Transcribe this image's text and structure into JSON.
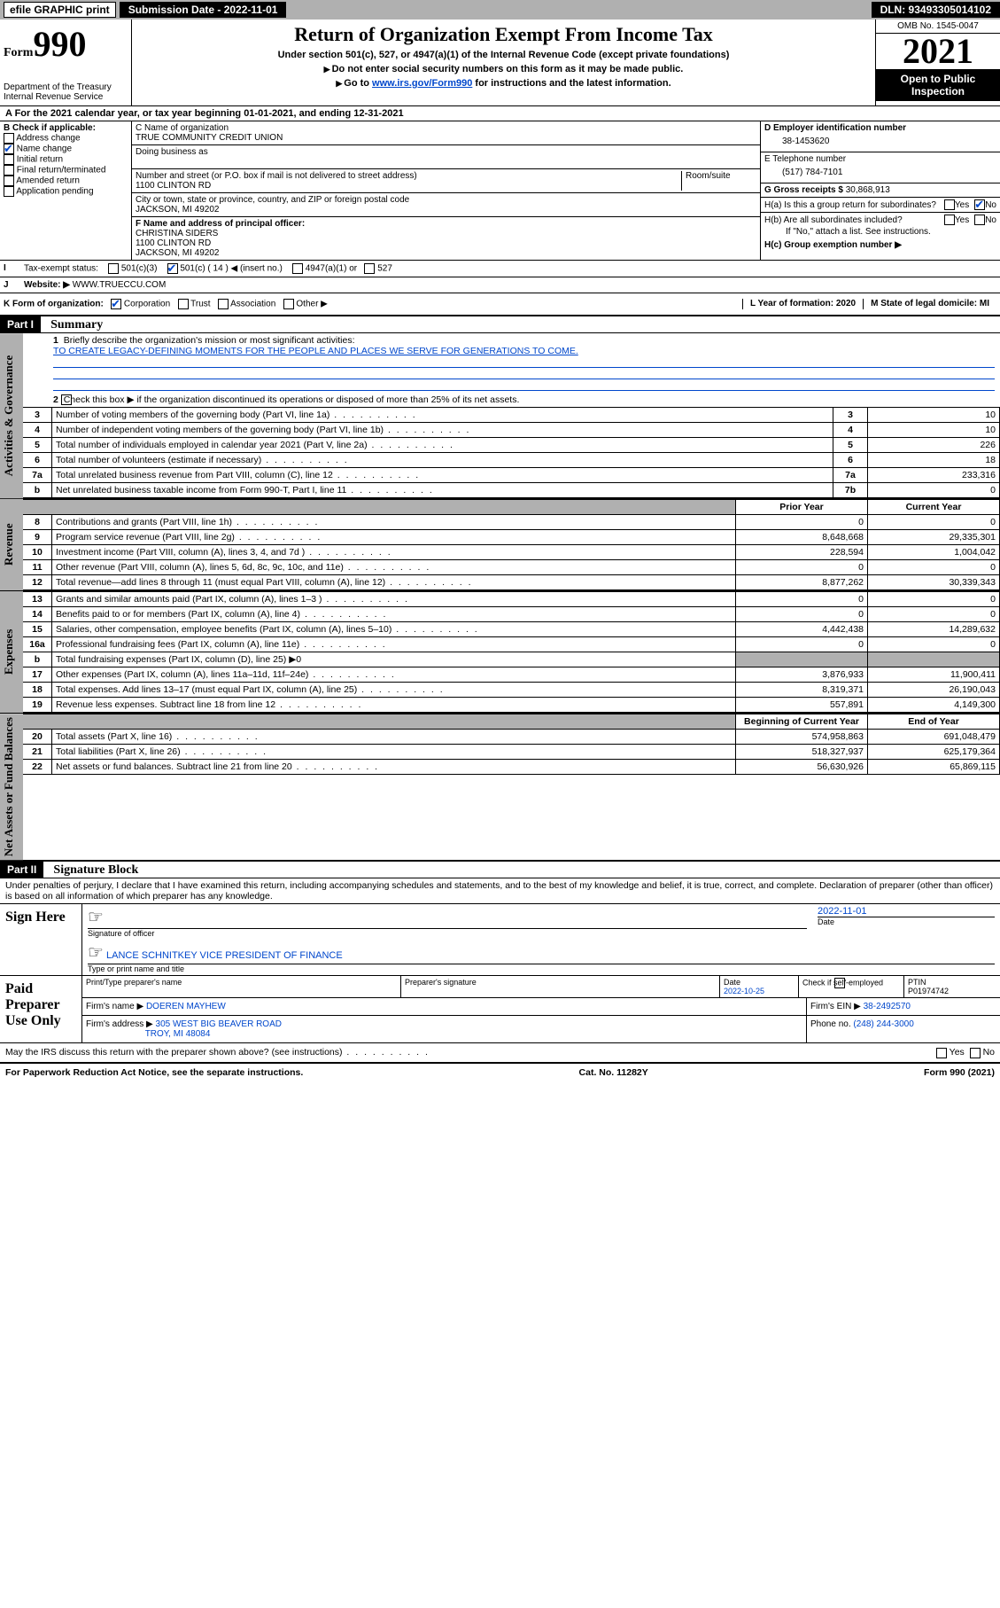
{
  "topbar": {
    "efile": "efile GRAPHIC print",
    "submission": "Submission Date - 2022-11-01",
    "dln": "DLN: 93493305014102"
  },
  "header": {
    "form_word": "Form",
    "form_num": "990",
    "dept": "Department of the Treasury",
    "irs": "Internal Revenue Service",
    "title": "Return of Organization Exempt From Income Tax",
    "sub1": "Under section 501(c), 527, or 4947(a)(1) of the Internal Revenue Code (except private foundations)",
    "sub2": "Do not enter social security numbers on this form as it may be made public.",
    "sub3_pre": "Go to ",
    "sub3_link": "www.irs.gov/Form990",
    "sub3_post": " for instructions and the latest information.",
    "omb": "OMB No. 1545-0047",
    "year": "2021",
    "open": "Open to Public Inspection"
  },
  "row_a": {
    "text_a": "A For the 2021 calendar year, or tax year beginning 01-01-2021",
    "text_b": ", and ending 12-31-2021"
  },
  "col_b": {
    "hdr": "B Check if applicable:",
    "i1": "Address change",
    "i2": "Name change",
    "i3": "Initial return",
    "i4": "Final return/terminated",
    "i5": "Amended return",
    "i6": "Application pending"
  },
  "col_cd": {
    "c_lbl": "C Name of organization",
    "c_val": "TRUE COMMUNITY CREDIT UNION",
    "dba_lbl": "Doing business as",
    "addr_lbl": "Number and street (or P.O. box if mail is not delivered to street address)",
    "room_lbl": "Room/suite",
    "addr_val": "1100 CLINTON RD",
    "city_lbl": "City or town, state or province, country, and ZIP or foreign postal code",
    "city_val": "JACKSON, MI  49202",
    "f_lbl": "F Name and address of principal officer:",
    "f_name": "CHRISTINA SIDERS",
    "f_addr1": "1100 CLINTON RD",
    "f_addr2": "JACKSON, MI  49202"
  },
  "col_right": {
    "d_lbl": "D Employer identification number",
    "d_val": "38-1453620",
    "e_lbl": "E Telephone number",
    "e_val": "(517) 784-7101",
    "g_lbl": "G Gross receipts $",
    "g_val": "30,868,913",
    "ha": "H(a)  Is this a group return for subordinates?",
    "hb": "H(b)  Are all subordinates included?",
    "hb_note": "If \"No,\" attach a list. See instructions.",
    "hc": "H(c)  Group exemption number ▶",
    "yes": "Yes",
    "no": "No"
  },
  "row_i": {
    "lbl": "I",
    "text": "Tax-exempt status:",
    "o1": "501(c)(3)",
    "o2": "501(c) ( 14 ) ◀ (insert no.)",
    "o3": "4947(a)(1) or",
    "o4": "527"
  },
  "row_j": {
    "lbl": "J",
    "text": "Website: ▶",
    "val": "WWW.TRUECCU.COM"
  },
  "row_k": {
    "lbl": "K Form of organization:",
    "o1": "Corporation",
    "o2": "Trust",
    "o3": "Association",
    "o4": "Other ▶",
    "l_lbl": "L Year of formation: 2020",
    "m_lbl": "M State of legal domicile: MI"
  },
  "part1": {
    "hdr": "Part I",
    "title": "Summary",
    "side_gov": "Activities & Governance",
    "side_rev": "Revenue",
    "side_exp": "Expenses",
    "side_net": "Net Assets or Fund Balances",
    "l1": "Briefly describe the organization's mission or most significant activities:",
    "l1_val": "TO CREATE LEGACY-DEFINING MOMENTS FOR THE PEOPLE AND PLACES WE SERVE FOR GENERATIONS TO COME.",
    "l2": "Check this box ▶        if the organization discontinued its operations or disposed of more than 25% of its net assets.",
    "rows_gov": [
      {
        "n": "3",
        "d": "Number of voting members of the governing body (Part VI, line 1a)",
        "k": "3",
        "v": "10"
      },
      {
        "n": "4",
        "d": "Number of independent voting members of the governing body (Part VI, line 1b)",
        "k": "4",
        "v": "10"
      },
      {
        "n": "5",
        "d": "Total number of individuals employed in calendar year 2021 (Part V, line 2a)",
        "k": "5",
        "v": "226"
      },
      {
        "n": "6",
        "d": "Total number of volunteers (estimate if necessary)",
        "k": "6",
        "v": "18"
      },
      {
        "n": "7a",
        "d": "Total unrelated business revenue from Part VIII, column (C), line 12",
        "k": "7a",
        "v": "233,316"
      },
      {
        "n": "b",
        "d": "Net unrelated business taxable income from Form 990-T, Part I, line 11",
        "k": "7b",
        "v": "0"
      }
    ],
    "hdr_prior": "Prior Year",
    "hdr_curr": "Current Year",
    "rows_rev": [
      {
        "n": "8",
        "d": "Contributions and grants (Part VIII, line 1h)",
        "p": "0",
        "c": "0"
      },
      {
        "n": "9",
        "d": "Program service revenue (Part VIII, line 2g)",
        "p": "8,648,668",
        "c": "29,335,301"
      },
      {
        "n": "10",
        "d": "Investment income (Part VIII, column (A), lines 3, 4, and 7d )",
        "p": "228,594",
        "c": "1,004,042"
      },
      {
        "n": "11",
        "d": "Other revenue (Part VIII, column (A), lines 5, 6d, 8c, 9c, 10c, and 11e)",
        "p": "0",
        "c": "0"
      },
      {
        "n": "12",
        "d": "Total revenue—add lines 8 through 11 (must equal Part VIII, column (A), line 12)",
        "p": "8,877,262",
        "c": "30,339,343"
      }
    ],
    "rows_exp": [
      {
        "n": "13",
        "d": "Grants and similar amounts paid (Part IX, column (A), lines 1–3 )",
        "p": "0",
        "c": "0"
      },
      {
        "n": "14",
        "d": "Benefits paid to or for members (Part IX, column (A), line 4)",
        "p": "0",
        "c": "0"
      },
      {
        "n": "15",
        "d": "Salaries, other compensation, employee benefits (Part IX, column (A), lines 5–10)",
        "p": "4,442,438",
        "c": "14,289,632"
      },
      {
        "n": "16a",
        "d": "Professional fundraising fees (Part IX, column (A), line 11e)",
        "p": "0",
        "c": "0"
      }
    ],
    "row_16b": {
      "n": "b",
      "d": "Total fundraising expenses (Part IX, column (D), line 25) ▶0"
    },
    "rows_exp2": [
      {
        "n": "17",
        "d": "Other expenses (Part IX, column (A), lines 11a–11d, 11f–24e)",
        "p": "3,876,933",
        "c": "11,900,411"
      },
      {
        "n": "18",
        "d": "Total expenses. Add lines 13–17 (must equal Part IX, column (A), line 25)",
        "p": "8,319,371",
        "c": "26,190,043"
      },
      {
        "n": "19",
        "d": "Revenue less expenses. Subtract line 18 from line 12",
        "p": "557,891",
        "c": "4,149,300"
      }
    ],
    "hdr_beg": "Beginning of Current Year",
    "hdr_end": "End of Year",
    "rows_net": [
      {
        "n": "20",
        "d": "Total assets (Part X, line 16)",
        "p": "574,958,863",
        "c": "691,048,479"
      },
      {
        "n": "21",
        "d": "Total liabilities (Part X, line 26)",
        "p": "518,327,937",
        "c": "625,179,364"
      },
      {
        "n": "22",
        "d": "Net assets or fund balances. Subtract line 21 from line 20",
        "p": "56,630,926",
        "c": "65,869,115"
      }
    ]
  },
  "part2": {
    "hdr": "Part II",
    "title": "Signature Block",
    "decl": "Under penalties of perjury, I declare that I have examined this return, including accompanying schedules and statements, and to the best of my knowledge and belief, it is true, correct, and complete. Declaration of preparer (other than officer) is based on all information of which preparer has any knowledge.",
    "sign_here": "Sign Here",
    "sig_officer": "Signature of officer",
    "sig_date": "2022-11-01",
    "date_lbl": "Date",
    "officer": "LANCE SCHNITKEY VICE PRESIDENT OF FINANCE",
    "officer_lbl": "Type or print name and title",
    "paid": "Paid Preparer Use Only",
    "prep_name_lbl": "Print/Type preparer's name",
    "prep_sig_lbl": "Preparer's signature",
    "prep_date_lbl": "Date",
    "prep_date": "2022-10-25",
    "check_lbl": "Check        if self-employed",
    "ptin_lbl": "PTIN",
    "ptin": "P01974742",
    "firm_name_lbl": "Firm's name    ▶",
    "firm_name": "DOEREN MAYHEW",
    "firm_ein_lbl": "Firm's EIN ▶",
    "firm_ein": "38-2492570",
    "firm_addr_lbl": "Firm's address ▶",
    "firm_addr1": "305 WEST BIG BEAVER ROAD",
    "firm_addr2": "TROY, MI  48084",
    "phone_lbl": "Phone no.",
    "phone": "(248) 244-3000",
    "discuss": "May the IRS discuss this return with the preparer shown above? (see instructions)"
  },
  "footer": {
    "left": "For Paperwork Reduction Act Notice, see the separate instructions.",
    "mid": "Cat. No. 11282Y",
    "right": "Form 990 (2021)"
  }
}
